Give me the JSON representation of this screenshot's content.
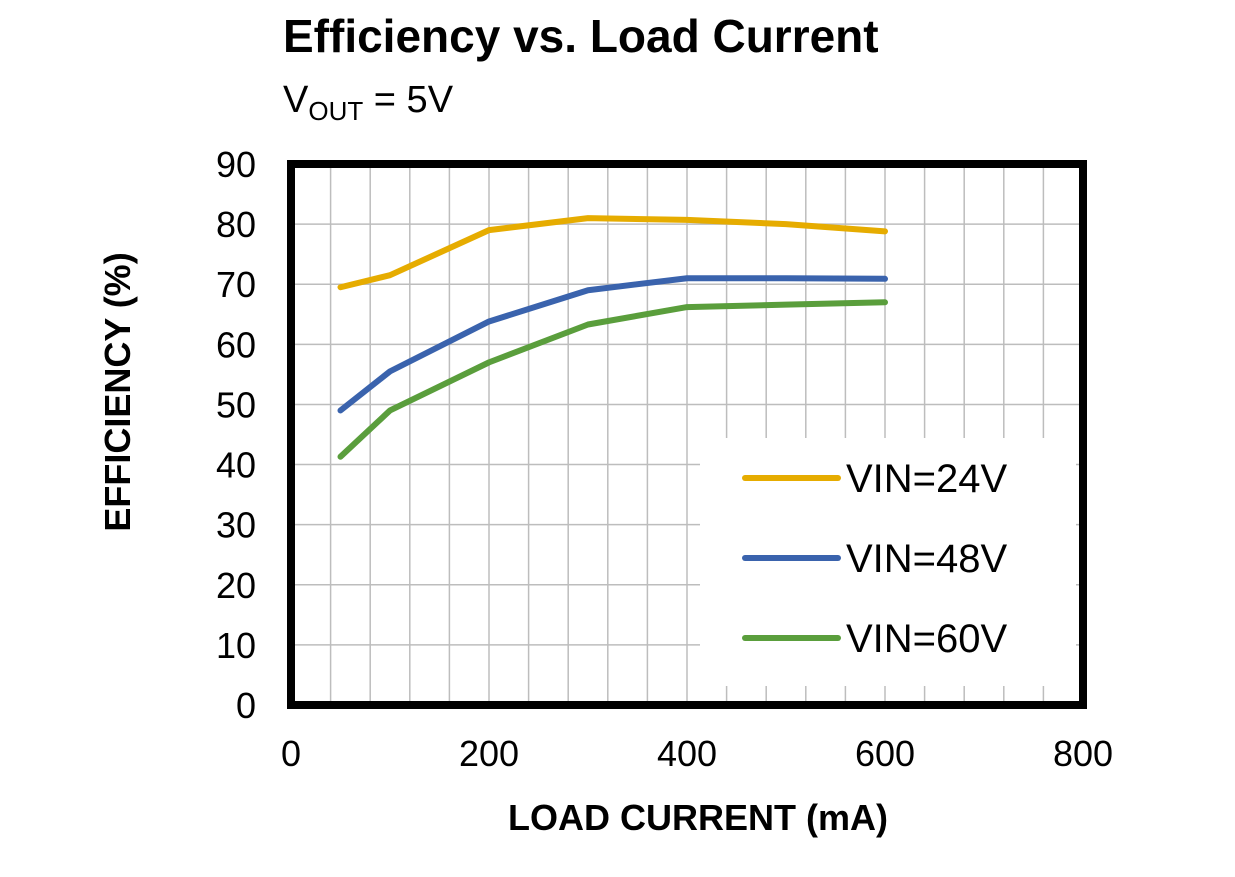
{
  "chart_data": {
    "type": "line",
    "title": "Efficiency vs. Load Current",
    "subtitle": {
      "main": "V",
      "sub": "OUT",
      "rest": " = 5V"
    },
    "xlabel": "LOAD CURRENT (mA)",
    "ylabel": "EFFICIENCY (%)",
    "xlim": [
      0,
      800
    ],
    "ylim": [
      0,
      90
    ],
    "xticks": [
      0,
      200,
      400,
      600,
      800
    ],
    "yticks": [
      0,
      10,
      20,
      30,
      40,
      50,
      60,
      70,
      80,
      90
    ],
    "grid": true,
    "legend_position": "lower-right",
    "x": [
      50,
      100,
      200,
      300,
      400,
      500,
      600
    ],
    "series": [
      {
        "name": "VIN=24V",
        "color": "#E6AC00",
        "values": [
          69.5,
          71.5,
          79,
          81,
          80.7,
          80,
          78.8
        ]
      },
      {
        "name": "VIN=48V",
        "color": "#3A63AD",
        "values": [
          49,
          55.5,
          63.8,
          69,
          71,
          71,
          70.9
        ]
      },
      {
        "name": "VIN=60V",
        "color": "#5A9E3C",
        "values": [
          41.3,
          49,
          57,
          63.3,
          66.2,
          66.6,
          67
        ]
      }
    ]
  }
}
